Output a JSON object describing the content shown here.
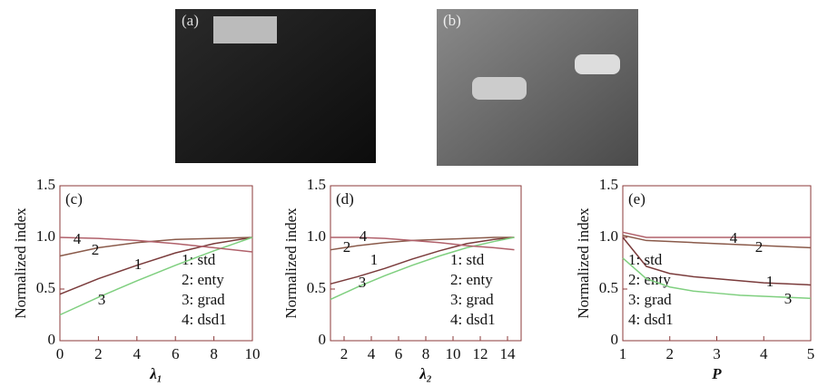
{
  "images": [
    {
      "label": "(a)"
    },
    {
      "label": "(b)"
    }
  ],
  "chart_data": [
    {
      "type": "line",
      "panel": "(c)",
      "y_label": "Normalized index",
      "x_label": "λ₁",
      "xlim": [
        0,
        10
      ],
      "xticks": [
        0,
        2,
        4,
        6,
        8,
        10
      ],
      "ylim": [
        0,
        1.5
      ],
      "yticks": [
        0,
        0.5,
        {
          "value": 1,
          "label": "1.0"
        },
        1.5
      ],
      "legend": "lower right",
      "x": [
        0,
        2,
        4,
        6,
        8,
        10
      ],
      "series": [
        {
          "name": "1: std",
          "label": "1",
          "color": "#7a3b3b",
          "values": [
            0.45,
            0.6,
            0.73,
            0.85,
            0.94,
            1.0
          ]
        },
        {
          "name": "2: enty",
          "label": "2",
          "color": "#8a5a4a",
          "values": [
            0.82,
            0.9,
            0.95,
            0.98,
            0.99,
            1.0
          ]
        },
        {
          "name": "3: grad",
          "label": "3",
          "color": "#7fcf7f",
          "values": [
            0.25,
            0.42,
            0.58,
            0.73,
            0.87,
            1.0
          ]
        },
        {
          "name": "4: dsd1",
          "label": "4",
          "color": "#b0606a",
          "values": [
            1.0,
            0.99,
            0.97,
            0.94,
            0.9,
            0.86
          ]
        }
      ]
    },
    {
      "type": "line",
      "panel": "(d)",
      "y_label": "Normalized index",
      "x_label": "λ₂",
      "xlim": [
        1,
        15
      ],
      "xticks": [
        2,
        4,
        6,
        8,
        10,
        12,
        14
      ],
      "ylim": [
        0,
        1.5
      ],
      "yticks": [
        0,
        0.5,
        {
          "value": 1,
          "label": "1.0"
        },
        1.5
      ],
      "legend": "lower right",
      "x": [
        1,
        3,
        5,
        7,
        9,
        11,
        13,
        14.5
      ],
      "series": [
        {
          "name": "1: std",
          "label": "1",
          "color": "#7a3b3b",
          "values": [
            0.55,
            0.62,
            0.7,
            0.79,
            0.87,
            0.94,
            0.98,
            1.0
          ]
        },
        {
          "name": "2: enty",
          "label": "2",
          "color": "#8a5a4a",
          "values": [
            0.88,
            0.92,
            0.95,
            0.97,
            0.98,
            0.99,
            1.0,
            1.0
          ]
        },
        {
          "name": "3: grad",
          "label": "3",
          "color": "#7fcf7f",
          "values": [
            0.4,
            0.52,
            0.63,
            0.73,
            0.82,
            0.9,
            0.96,
            1.0
          ]
        },
        {
          "name": "4: dsd1",
          "label": "4",
          "color": "#b0606a",
          "values": [
            1.0,
            1.0,
            0.99,
            0.97,
            0.95,
            0.92,
            0.9,
            0.88
          ]
        }
      ]
    },
    {
      "type": "line",
      "panel": "(e)",
      "y_label": "Normalized index",
      "x_label": "P",
      "xlim": [
        1,
        5
      ],
      "xticks": [
        1,
        2,
        3,
        4,
        5
      ],
      "ylim": [
        0,
        1.5
      ],
      "yticks": [
        0,
        0.5,
        {
          "value": 1,
          "label": "1.0"
        },
        1.5
      ],
      "legend": "lower left",
      "x": [
        1,
        1.5,
        2,
        2.5,
        3,
        3.5,
        4,
        4.5,
        5
      ],
      "series": [
        {
          "name": "1: std",
          "label": "1",
          "color": "#7a3b3b",
          "values": [
            1.0,
            0.72,
            0.65,
            0.62,
            0.6,
            0.58,
            0.56,
            0.55,
            0.54
          ]
        },
        {
          "name": "2: enty",
          "label": "2",
          "color": "#8a5a4a",
          "values": [
            1.02,
            0.97,
            0.96,
            0.95,
            0.94,
            0.93,
            0.92,
            0.91,
            0.9
          ]
        },
        {
          "name": "3: grad",
          "label": "3",
          "color": "#7fcf7f",
          "values": [
            0.8,
            0.6,
            0.52,
            0.48,
            0.46,
            0.44,
            0.43,
            0.42,
            0.41
          ]
        },
        {
          "name": "4: dsd1",
          "label": "4",
          "color": "#b0606a",
          "values": [
            1.05,
            1.0,
            1.0,
            1.0,
            1.0,
            1.0,
            1.0,
            1.0,
            1.0
          ]
        }
      ]
    }
  ]
}
